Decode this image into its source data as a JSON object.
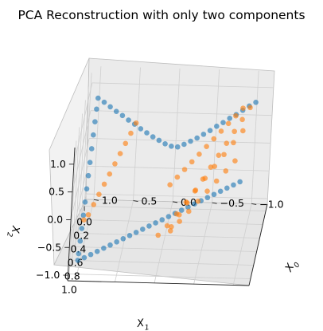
{
  "chart_data": {
    "type": "scatter",
    "projection": "3d",
    "title": "PCA Reconstruction with only two components",
    "xlabel": "X_0",
    "xlabel_main": "X",
    "xlabel_sub": "0",
    "ylabel": "X_1",
    "ylabel_main": "X",
    "ylabel_sub": "1",
    "zlabel": "X_2",
    "zlabel_main": "X",
    "zlabel_sub": "2",
    "xlim": [
      -1.2,
      1.1
    ],
    "ylim": [
      -0.1,
      1.1
    ],
    "zlim": [
      -1.1,
      1.3
    ],
    "x_ticks": [
      "−1.0",
      "−0.5",
      "0.0",
      "0.5",
      "1.0"
    ],
    "x_tick_values": [
      -1.0,
      -0.5,
      0.0,
      0.5,
      1.0
    ],
    "y_ticks": [
      "0.0",
      "0.2",
      "0.4",
      "0.6",
      "0.8",
      "1.0"
    ],
    "y_tick_values": [
      0.0,
      0.2,
      0.4,
      0.6,
      0.8,
      1.0
    ],
    "z_ticks": [
      "−1.0",
      "−0.5",
      "0.0",
      "0.5",
      "1.0"
    ],
    "z_tick_values": [
      -1.0,
      -0.5,
      0.0,
      0.5,
      1.0
    ],
    "grid": true,
    "legend": "none",
    "series": [
      {
        "color": "#1f77b4",
        "description_of_shape": "V-shaped 3D curve",
        "points": [
          [
            -1.0,
            0.0,
            0.85
          ],
          [
            -0.92,
            0.0,
            0.78
          ],
          [
            -0.84,
            0.0,
            0.7
          ],
          [
            -0.76,
            0.0,
            0.62
          ],
          [
            -0.68,
            0.0,
            0.55
          ],
          [
            -0.6,
            0.0,
            0.47
          ],
          [
            -0.52,
            0.0,
            0.4
          ],
          [
            -0.44,
            0.0,
            0.32
          ],
          [
            -0.36,
            0.0,
            0.25
          ],
          [
            -0.28,
            0.0,
            0.18
          ],
          [
            -0.2,
            0.0,
            0.12
          ],
          [
            -0.12,
            0.0,
            0.06
          ],
          [
            -0.04,
            0.0,
            0.01
          ],
          [
            0.04,
            0.0,
            0.02
          ],
          [
            0.12,
            0.0,
            0.06
          ],
          [
            0.2,
            0.0,
            0.12
          ],
          [
            0.28,
            0.0,
            0.18
          ],
          [
            0.36,
            0.0,
            0.25
          ],
          [
            0.44,
            0.0,
            0.32
          ],
          [
            0.52,
            0.0,
            0.4
          ],
          [
            0.6,
            0.0,
            0.47
          ],
          [
            0.68,
            0.0,
            0.55
          ],
          [
            0.76,
            0.0,
            0.62
          ],
          [
            0.84,
            0.0,
            0.7
          ],
          [
            0.92,
            0.0,
            0.78
          ],
          [
            1.0,
            0.0,
            0.85
          ],
          [
            1.0,
            0.08,
            0.75
          ],
          [
            1.0,
            0.16,
            0.62
          ],
          [
            1.0,
            0.24,
            0.48
          ],
          [
            1.0,
            0.32,
            0.33
          ],
          [
            1.0,
            0.4,
            0.18
          ],
          [
            1.0,
            0.48,
            0.04
          ],
          [
            1.0,
            0.56,
            -0.1
          ],
          [
            1.0,
            0.64,
            -0.24
          ],
          [
            1.0,
            0.72,
            -0.38
          ],
          [
            1.0,
            0.8,
            -0.52
          ],
          [
            1.0,
            0.88,
            -0.65
          ],
          [
            1.0,
            0.96,
            -0.78
          ],
          [
            1.0,
            1.0,
            -0.85
          ],
          [
            0.92,
            1.0,
            -0.8
          ],
          [
            0.84,
            1.0,
            -0.74
          ],
          [
            0.76,
            1.0,
            -0.68
          ],
          [
            0.68,
            1.0,
            -0.62
          ],
          [
            0.6,
            1.0,
            -0.56
          ],
          [
            0.52,
            1.0,
            -0.5
          ],
          [
            0.44,
            1.0,
            -0.44
          ],
          [
            0.36,
            1.0,
            -0.38
          ],
          [
            0.28,
            1.0,
            -0.32
          ],
          [
            0.2,
            1.0,
            -0.26
          ],
          [
            0.12,
            1.0,
            -0.2
          ],
          [
            0.04,
            1.0,
            -0.14
          ],
          [
            -0.04,
            1.0,
            -0.08
          ],
          [
            -0.12,
            1.0,
            -0.02
          ],
          [
            -0.2,
            1.0,
            0.04
          ],
          [
            -0.28,
            1.0,
            0.1
          ],
          [
            -0.36,
            1.0,
            0.16
          ],
          [
            -0.44,
            1.0,
            0.22
          ],
          [
            -0.52,
            1.0,
            0.28
          ],
          [
            -0.6,
            1.0,
            0.34
          ],
          [
            -0.68,
            1.0,
            0.4
          ],
          [
            -0.76,
            1.0,
            0.46
          ],
          [
            -0.84,
            1.0,
            0.52
          ],
          [
            -0.92,
            1.0,
            0.58
          ],
          [
            -1.0,
            1.0,
            0.64
          ]
        ]
      },
      {
        "color": "#ff7f0e",
        "description_of_shape": "reconstruction on a plane",
        "points": [
          [
            -0.85,
            0.05,
            0.8
          ],
          [
            -0.77,
            0.1,
            0.72
          ],
          [
            -0.69,
            0.15,
            0.64
          ],
          [
            -0.61,
            0.2,
            0.56
          ],
          [
            -0.53,
            0.25,
            0.48
          ],
          [
            -0.45,
            0.3,
            0.4
          ],
          [
            -0.37,
            0.35,
            0.32
          ],
          [
            -0.29,
            0.4,
            0.24
          ],
          [
            -0.21,
            0.45,
            0.16
          ],
          [
            -0.13,
            0.5,
            0.08
          ],
          [
            -0.05,
            0.55,
            0.0
          ],
          [
            -0.95,
            0.12,
            0.9
          ],
          [
            -0.87,
            0.2,
            0.78
          ],
          [
            -0.79,
            0.28,
            0.66
          ],
          [
            -0.71,
            0.36,
            0.54
          ],
          [
            -0.63,
            0.44,
            0.42
          ],
          [
            -0.55,
            0.52,
            0.3
          ],
          [
            -0.47,
            0.6,
            0.18
          ],
          [
            -0.39,
            0.68,
            0.06
          ],
          [
            -0.31,
            0.76,
            -0.06
          ],
          [
            -0.23,
            0.84,
            -0.18
          ],
          [
            -0.15,
            0.92,
            -0.3
          ],
          [
            -0.9,
            0.3,
            0.7
          ],
          [
            -0.8,
            0.38,
            0.58
          ],
          [
            -0.7,
            0.46,
            0.46
          ],
          [
            -0.6,
            0.54,
            0.34
          ],
          [
            -0.5,
            0.62,
            0.22
          ],
          [
            -0.4,
            0.7,
            0.1
          ],
          [
            -0.3,
            0.78,
            -0.02
          ],
          [
            -0.2,
            0.86,
            -0.14
          ],
          [
            -0.1,
            0.94,
            -0.26
          ],
          [
            0.0,
            1.0,
            -0.36
          ],
          [
            -0.85,
            0.5,
            0.4
          ],
          [
            -0.75,
            0.57,
            0.3
          ],
          [
            -0.65,
            0.64,
            0.2
          ],
          [
            -0.55,
            0.71,
            0.1
          ],
          [
            -0.45,
            0.78,
            0.0
          ],
          [
            -0.35,
            0.85,
            -0.1
          ],
          [
            -0.25,
            0.92,
            -0.2
          ],
          [
            -0.15,
            0.98,
            -0.3
          ],
          [
            0.45,
            0.35,
            0.85
          ],
          [
            0.5,
            0.42,
            0.75
          ],
          [
            0.55,
            0.49,
            0.65
          ],
          [
            0.6,
            0.56,
            0.55
          ],
          [
            0.65,
            0.63,
            0.45
          ],
          [
            0.7,
            0.7,
            0.35
          ],
          [
            0.75,
            0.77,
            0.25
          ],
          [
            0.8,
            0.84,
            0.15
          ],
          [
            0.85,
            0.91,
            0.05
          ],
          [
            0.9,
            0.98,
            -0.05
          ],
          [
            0.95,
            1.0,
            -0.12
          ]
        ]
      }
    ]
  }
}
